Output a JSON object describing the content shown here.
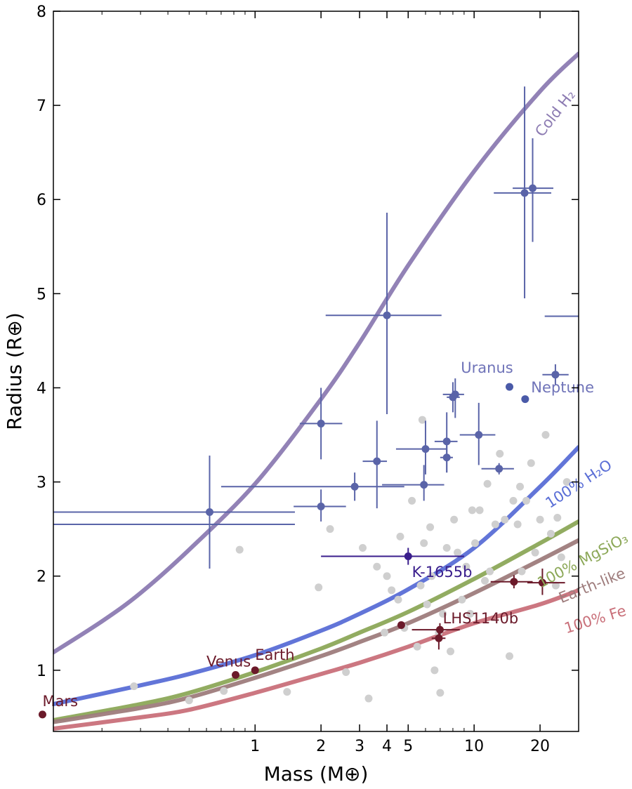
{
  "chart_data": {
    "type": "scatter",
    "xlabel": "Mass (M⊕)",
    "ylabel": "Radius (R⊕)",
    "x_scale": "log",
    "xlim": [
      0.12,
      30
    ],
    "ylim": [
      0.35,
      8
    ],
    "x_tick_labels": [
      "1",
      "2",
      "3",
      "4",
      "5",
      "10",
      "20"
    ],
    "x_tick_values": [
      1,
      2,
      3,
      4,
      5,
      10,
      20
    ],
    "y_tick_labels": [
      "1",
      "2",
      "3",
      "4",
      "5",
      "6",
      "7",
      "8"
    ],
    "y_tick_values": [
      1,
      2,
      3,
      4,
      5,
      6,
      7,
      8
    ],
    "grid": false,
    "composition_curves": [
      {
        "label": "Cold H₂",
        "color": "#8c7bb2",
        "points": [
          [
            0.12,
            1.19
          ],
          [
            0.2,
            1.52
          ],
          [
            0.3,
            1.82
          ],
          [
            0.5,
            2.28
          ],
          [
            1,
            2.98
          ],
          [
            2,
            3.88
          ],
          [
            3,
            4.48
          ],
          [
            5,
            5.3
          ],
          [
            10,
            6.3
          ],
          [
            20,
            7.15
          ],
          [
            30,
            7.55
          ]
        ]
      },
      {
        "label": "100% H₂O",
        "color": "#5a6ed6",
        "points": [
          [
            0.12,
            0.64
          ],
          [
            0.3,
            0.84
          ],
          [
            0.5,
            0.96
          ],
          [
            1,
            1.16
          ],
          [
            2,
            1.42
          ],
          [
            3,
            1.6
          ],
          [
            5,
            1.86
          ],
          [
            10,
            2.3
          ],
          [
            20,
            2.95
          ],
          [
            30,
            3.37
          ]
        ]
      },
      {
        "label": "100% MgSiO₃",
        "color": "#8ca858",
        "points": [
          [
            0.12,
            0.47
          ],
          [
            0.3,
            0.64
          ],
          [
            0.5,
            0.76
          ],
          [
            1,
            0.98
          ],
          [
            2,
            1.23
          ],
          [
            3,
            1.4
          ],
          [
            5,
            1.62
          ],
          [
            10,
            1.97
          ],
          [
            20,
            2.35
          ],
          [
            30,
            2.58
          ]
        ]
      },
      {
        "label": "Earth-like",
        "color": "#9e7c7c",
        "points": [
          [
            0.12,
            0.45
          ],
          [
            0.3,
            0.6
          ],
          [
            0.5,
            0.71
          ],
          [
            1,
            0.92
          ],
          [
            2,
            1.15
          ],
          [
            3,
            1.3
          ],
          [
            5,
            1.5
          ],
          [
            10,
            1.82
          ],
          [
            20,
            2.17
          ],
          [
            30,
            2.38
          ]
        ]
      },
      {
        "label": "100% Fe",
        "color": "#c9707a",
        "points": [
          [
            0.12,
            0.38
          ],
          [
            0.3,
            0.5
          ],
          [
            0.5,
            0.58
          ],
          [
            1,
            0.76
          ],
          [
            2,
            0.96
          ],
          [
            3,
            1.08
          ],
          [
            5,
            1.25
          ],
          [
            10,
            1.5
          ],
          [
            20,
            1.7
          ],
          [
            30,
            1.85
          ]
        ]
      }
    ],
    "background_points": [
      [
        2.2,
        2.5
      ],
      [
        3.1,
        2.3
      ],
      [
        3.6,
        2.1
      ],
      [
        3.9,
        1.4
      ],
      [
        4.0,
        2.0
      ],
      [
        4.2,
        1.85
      ],
      [
        4.5,
        1.75
      ],
      [
        4.8,
        1.45
      ],
      [
        5.2,
        2.8
      ],
      [
        5.5,
        1.25
      ],
      [
        5.7,
        1.9
      ],
      [
        5.9,
        2.35
      ],
      [
        6.1,
        1.7
      ],
      [
        6.4,
        2.0
      ],
      [
        6.6,
        1.0
      ],
      [
        6.9,
        1.4
      ],
      [
        7.2,
        1.6
      ],
      [
        7.5,
        2.3
      ],
      [
        7.8,
        1.2
      ],
      [
        8.1,
        2.6
      ],
      [
        8.4,
        2.25
      ],
      [
        8.8,
        1.75
      ],
      [
        9.2,
        2.1
      ],
      [
        9.6,
        1.6
      ],
      [
        10.1,
        2.35
      ],
      [
        10.6,
        2.7
      ],
      [
        11.2,
        1.95
      ],
      [
        11.8,
        2.05
      ],
      [
        12.5,
        2.55
      ],
      [
        13.1,
        3.3
      ],
      [
        13.8,
        2.6
      ],
      [
        14.5,
        1.15
      ],
      [
        15.1,
        2.8
      ],
      [
        15.8,
        2.55
      ],
      [
        16.5,
        2.05
      ],
      [
        17.3,
        2.8
      ],
      [
        18.2,
        3.2
      ],
      [
        19.0,
        2.25
      ],
      [
        20.0,
        2.6
      ],
      [
        21.2,
        3.5
      ],
      [
        22.4,
        2.45
      ],
      [
        23.6,
        1.9
      ],
      [
        25.0,
        2.2
      ],
      [
        26.5,
        3.0
      ],
      [
        5.8,
        3.66
      ],
      [
        3.3,
        0.7
      ],
      [
        2.6,
        0.98
      ],
      [
        0.28,
        0.83
      ],
      [
        0.5,
        0.68
      ],
      [
        0.72,
        0.78
      ],
      [
        0.85,
        2.28
      ],
      [
        1.4,
        0.77
      ],
      [
        1.95,
        1.88
      ],
      [
        4.6,
        2.42
      ],
      [
        6.3,
        2.52
      ],
      [
        7.0,
        0.76
      ],
      [
        9.8,
        2.7
      ],
      [
        11.5,
        2.98
      ],
      [
        16.2,
        2.95
      ],
      [
        24.0,
        2.62
      ]
    ],
    "planets_with_errors": [
      {
        "x": 0.62,
        "y": 2.68,
        "xlo": 0.12,
        "xhi": 1.52,
        "ylo": 2.08,
        "yhi": 3.28,
        "color": "#5a64a8"
      },
      {
        "x": 2.0,
        "y": 3.62,
        "xlo": 1.6,
        "xhi": 2.5,
        "ylo": 3.24,
        "yhi": 4.0,
        "color": "#5a64a8"
      },
      {
        "x": 2.0,
        "y": 2.74,
        "xlo": 1.5,
        "xhi": 2.6,
        "ylo": 2.58,
        "yhi": 2.92,
        "color": "#5a64a8"
      },
      {
        "x": 2.85,
        "y": 2.95,
        "xlo": 0.7,
        "xhi": 4.8,
        "ylo": 2.8,
        "yhi": 3.1,
        "color": "#5a64a8"
      },
      {
        "x": 3.6,
        "y": 3.22,
        "xlo": 3.1,
        "xhi": 4.0,
        "ylo": 2.72,
        "yhi": 3.65,
        "color": "#5a64a8"
      },
      {
        "x": 4.0,
        "y": 4.77,
        "xlo": 2.1,
        "xhi": 7.1,
        "ylo": 3.72,
        "yhi": 5.86,
        "color": "#5a64a8"
      },
      {
        "x": 6.0,
        "y": 3.35,
        "xlo": 4.4,
        "xhi": 7.5,
        "ylo": 3.08,
        "yhi": 3.65,
        "color": "#5a64a8"
      },
      {
        "x": 5.9,
        "y": 2.97,
        "xlo": 3.8,
        "xhi": 7.3,
        "ylo": 2.8,
        "yhi": 3.18,
        "color": "#5a64a8"
      },
      {
        "x": 7.5,
        "y": 3.43,
        "xlo": 6.6,
        "xhi": 8.4,
        "ylo": 3.1,
        "yhi": 3.74,
        "color": "#5a64a8"
      },
      {
        "x": 7.5,
        "y": 3.26,
        "xlo": 7.0,
        "xhi": 8.0,
        "ylo": 3.1,
        "yhi": 3.42,
        "color": "#5a64a8"
      },
      {
        "x": 8.2,
        "y": 3.93,
        "xlo": 7.2,
        "xhi": 9.0,
        "ylo": 3.68,
        "yhi": 4.1,
        "color": "#5a64a8"
      },
      {
        "x": 8.0,
        "y": 3.9,
        "xlo": 7.5,
        "xhi": 8.6,
        "ylo": 3.74,
        "yhi": 4.06,
        "color": "#5a64a8"
      },
      {
        "x": 10.5,
        "y": 3.5,
        "xlo": 8.6,
        "xhi": 12.5,
        "ylo": 3.18,
        "yhi": 3.84,
        "color": "#5a64a8"
      },
      {
        "x": 13.0,
        "y": 3.14,
        "xlo": 10.8,
        "xhi": 15.2,
        "ylo": 3.08,
        "yhi": 3.2,
        "color": "#5a64a8"
      },
      {
        "x": 17.0,
        "y": 6.07,
        "xlo": 12.3,
        "xhi": 22.5,
        "ylo": 4.95,
        "yhi": 7.2,
        "color": "#5a64a8"
      },
      {
        "x": 18.5,
        "y": 6.12,
        "xlo": 15.0,
        "xhi": 23.0,
        "ylo": 5.55,
        "yhi": 6.65,
        "color": "#5a64a8"
      },
      {
        "x": 23.5,
        "y": 4.14,
        "xlo": 20.5,
        "xhi": 27.0,
        "ylo": 4.03,
        "yhi": 4.25,
        "color": "#5a64a8"
      },
      {
        "x": 5.0,
        "y": 2.21,
        "xlo": 2.0,
        "xhi": 9.0,
        "ylo": 2.12,
        "yhi": 2.3,
        "color": "#3a1e8c"
      },
      {
        "x": 6.98,
        "y": 1.43,
        "xlo": 5.2,
        "xhi": 8.6,
        "ylo": 1.36,
        "yhi": 1.5,
        "color": "#6b1a2a"
      },
      {
        "x": 6.9,
        "y": 1.34,
        "xlo": 6.4,
        "xhi": 7.4,
        "ylo": 1.22,
        "yhi": 1.46,
        "color": "#6b1a2a"
      },
      {
        "x": 15.2,
        "y": 1.94,
        "xlo": 11.9,
        "xhi": 18.5,
        "ylo": 1.87,
        "yhi": 2.01,
        "color": "#6b1a2a"
      },
      {
        "x": 20.5,
        "y": 1.93,
        "xlo": 17.5,
        "xhi": 26.0,
        "ylo": 1.8,
        "yhi": 2.08,
        "color": "#6b1a2a"
      }
    ],
    "isolated_error_bars": [
      {
        "xlo": 0.12,
        "xhi": 1.52,
        "y": 2.55,
        "color": "#5a64a8"
      },
      {
        "xlo": 21.0,
        "xhi": 30.0,
        "y": 4.76,
        "color": "#5a64a8"
      }
    ],
    "planets": [
      {
        "x": 14.5,
        "y": 4.01,
        "color": "#4a5aa8"
      },
      {
        "x": 17.1,
        "y": 3.88,
        "color": "#4a5aa8"
      },
      {
        "x": 0.107,
        "y": 0.53,
        "color": "#6b1a2a"
      },
      {
        "x": 0.815,
        "y": 0.95,
        "color": "#6b1a2a"
      },
      {
        "x": 1.0,
        "y": 1.0,
        "color": "#6b1a2a"
      },
      {
        "x": 4.65,
        "y": 1.48,
        "color": "#6b1a2a"
      }
    ],
    "planet_labels": [
      {
        "text": "Uranus",
        "x": 8.7,
        "y": 4.16,
        "color": "#6f73b8"
      },
      {
        "text": "Neptune",
        "x": 18.2,
        "y": 3.95,
        "color": "#6f73b8"
      },
      {
        "text": "K-1655b",
        "x": 5.2,
        "y": 1.99,
        "color": "#3a1e8c"
      },
      {
        "text": "LHS1140b",
        "x": 7.2,
        "y": 1.5,
        "color": "#6b1a2a"
      },
      {
        "text": "Mars",
        "x": 0.107,
        "y": 0.62,
        "color": "#6b1a2a"
      },
      {
        "text": "Venus",
        "x": 0.6,
        "y": 1.04,
        "color": "#6b1a2a"
      },
      {
        "text": "Earth",
        "x": 1.0,
        "y": 1.11,
        "color": "#6b1a2a"
      }
    ]
  }
}
